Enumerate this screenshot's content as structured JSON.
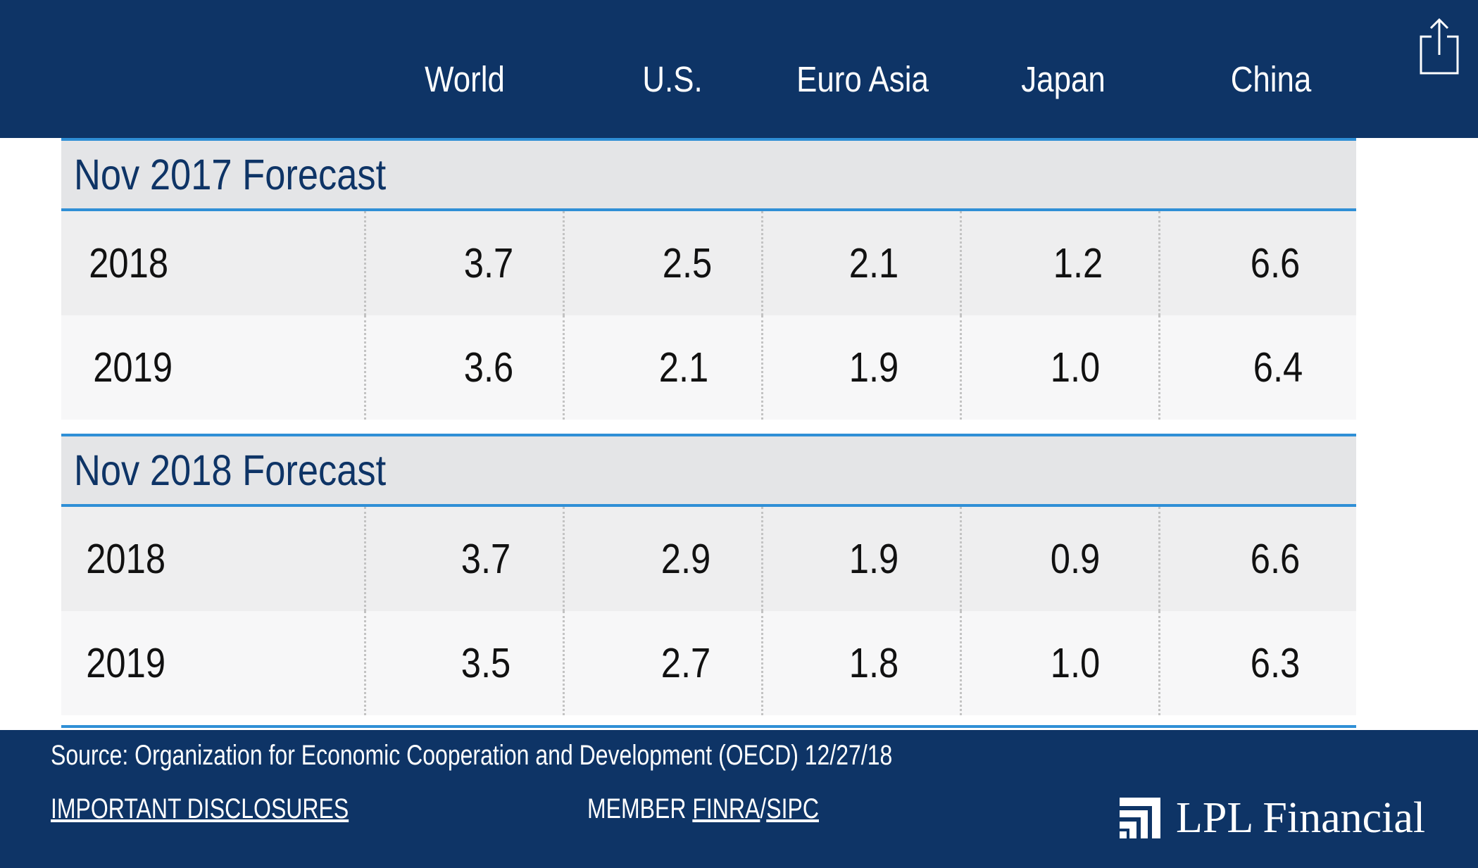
{
  "header": {
    "columns": [
      "World",
      "U.S.",
      "Euro Asia",
      "Japan",
      "China"
    ],
    "share_icon": "share-icon"
  },
  "sections": [
    {
      "label": "Nov 2017 Forecast",
      "rows": [
        {
          "year": "2018",
          "values": [
            "3.7",
            "2.5",
            "2.1",
            "1.2",
            "6.6"
          ]
        },
        {
          "year": "2019",
          "values": [
            "3.6",
            "2.1",
            "1.9",
            "1.0",
            "6.4"
          ]
        }
      ]
    },
    {
      "label": "Nov 2018 Forecast",
      "rows": [
        {
          "year": "2018",
          "values": [
            "3.7",
            "2.9",
            "1.9",
            "0.9",
            "6.6"
          ]
        },
        {
          "year": "2019",
          "values": [
            "3.5",
            "2.7",
            "1.8",
            "1.0",
            "6.3"
          ]
        }
      ]
    }
  ],
  "footer": {
    "source": "Source: Organization for Economic Cooperation and Development (OECD)   12/27/18",
    "disclosures_link": "IMPORTANT DISCLOSURES",
    "member_prefix": "MEMBER ",
    "finra_link": "FINRA",
    "separator": "/",
    "sipc_link": "SIPC",
    "logo_text": "LPL Financial"
  },
  "colors": {
    "navy": "#0e3466",
    "accent_blue": "#2f8fd6",
    "section_bg": "#e4e5e7",
    "row_odd": "#eeeeef",
    "row_even": "#f7f7f8"
  }
}
